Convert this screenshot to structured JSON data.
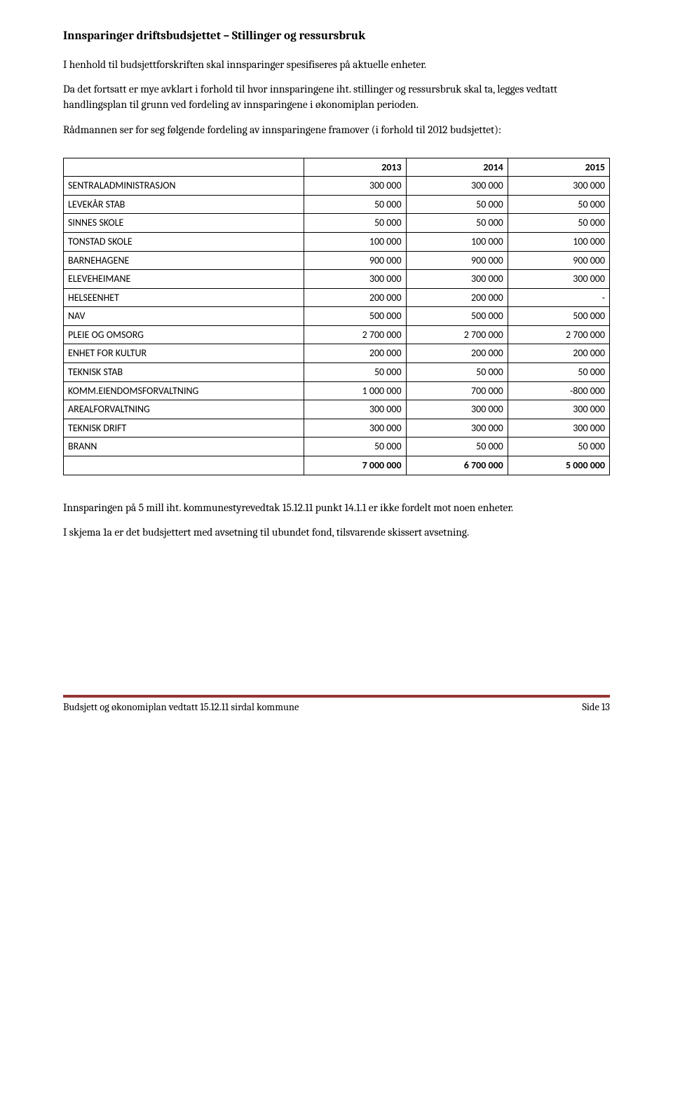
{
  "heading": "Innsparinger driftsbudsjettet – Stillinger og ressursbruk",
  "para1": "I henhold til budsjettforskriften skal innsparinger spesifiseres på aktuelle enheter.",
  "para2": "Da det fortsatt er mye avklart i forhold til hvor innsparingene iht. stillinger og ressursbruk skal ta, legges vedtatt handlingsplan til grunn ved fordeling av innsparingene i økonomiplan perioden.",
  "para3": "Rådmannen ser for seg følgende fordeling av innsparingene framover (i forhold til 2012 budsjettet):",
  "table": {
    "headers": [
      "",
      "2013",
      "2014",
      "2015"
    ],
    "rows": [
      [
        "SENTRALADMINISTRASJON",
        "300 000",
        "300 000",
        "300 000"
      ],
      [
        "LEVEKÅR STAB",
        "50 000",
        "50 000",
        "50 000"
      ],
      [
        "SINNES SKOLE",
        "50 000",
        "50 000",
        "50 000"
      ],
      [
        "TONSTAD SKOLE",
        "100 000",
        "100 000",
        "100 000"
      ],
      [
        "BARNEHAGENE",
        "900 000",
        "900 000",
        "900 000"
      ],
      [
        "ELEVEHEIMANE",
        "300 000",
        "300 000",
        "300 000"
      ],
      [
        "HELSEENHET",
        "200 000",
        "200 000",
        "-"
      ],
      [
        "NAV",
        "500 000",
        "500 000",
        "500 000"
      ],
      [
        "PLEIE OG OMSORG",
        "2 700 000",
        "2 700 000",
        "2 700 000"
      ],
      [
        "ENHET FOR KULTUR",
        "200 000",
        "200 000",
        "200 000"
      ],
      [
        "TEKNISK STAB",
        "50 000",
        "50 000",
        "50 000"
      ],
      [
        "KOMM.EIENDOMSFORVALTNING",
        "1 000 000",
        "700 000",
        "-800 000"
      ],
      [
        "AREALFORVALTNING",
        "300 000",
        "300 000",
        "300 000"
      ],
      [
        "TEKNISK DRIFT",
        "300 000",
        "300 000",
        "300 000"
      ],
      [
        "BRANN",
        "50 000",
        "50 000",
        "50 000"
      ]
    ],
    "total": [
      "",
      "7 000 000",
      "6 700 000",
      "5 000 000"
    ]
  },
  "para4": "Innsparingen på 5 mill iht. kommunestyrevedtak 15.12.11 punkt 14.1.1 er ikke fordelt mot noen enheter.",
  "para5": "I skjema 1a er det budsjettert med avsetning til ubundet fond, tilsvarende skissert avsetning.",
  "footer": {
    "left": "Budsjett og økonomiplan vedtatt 15.12.11 sirdal kommune",
    "right": "Side 13",
    "line_color_top": "#943634",
    "line_color_bottom": "#943634"
  }
}
